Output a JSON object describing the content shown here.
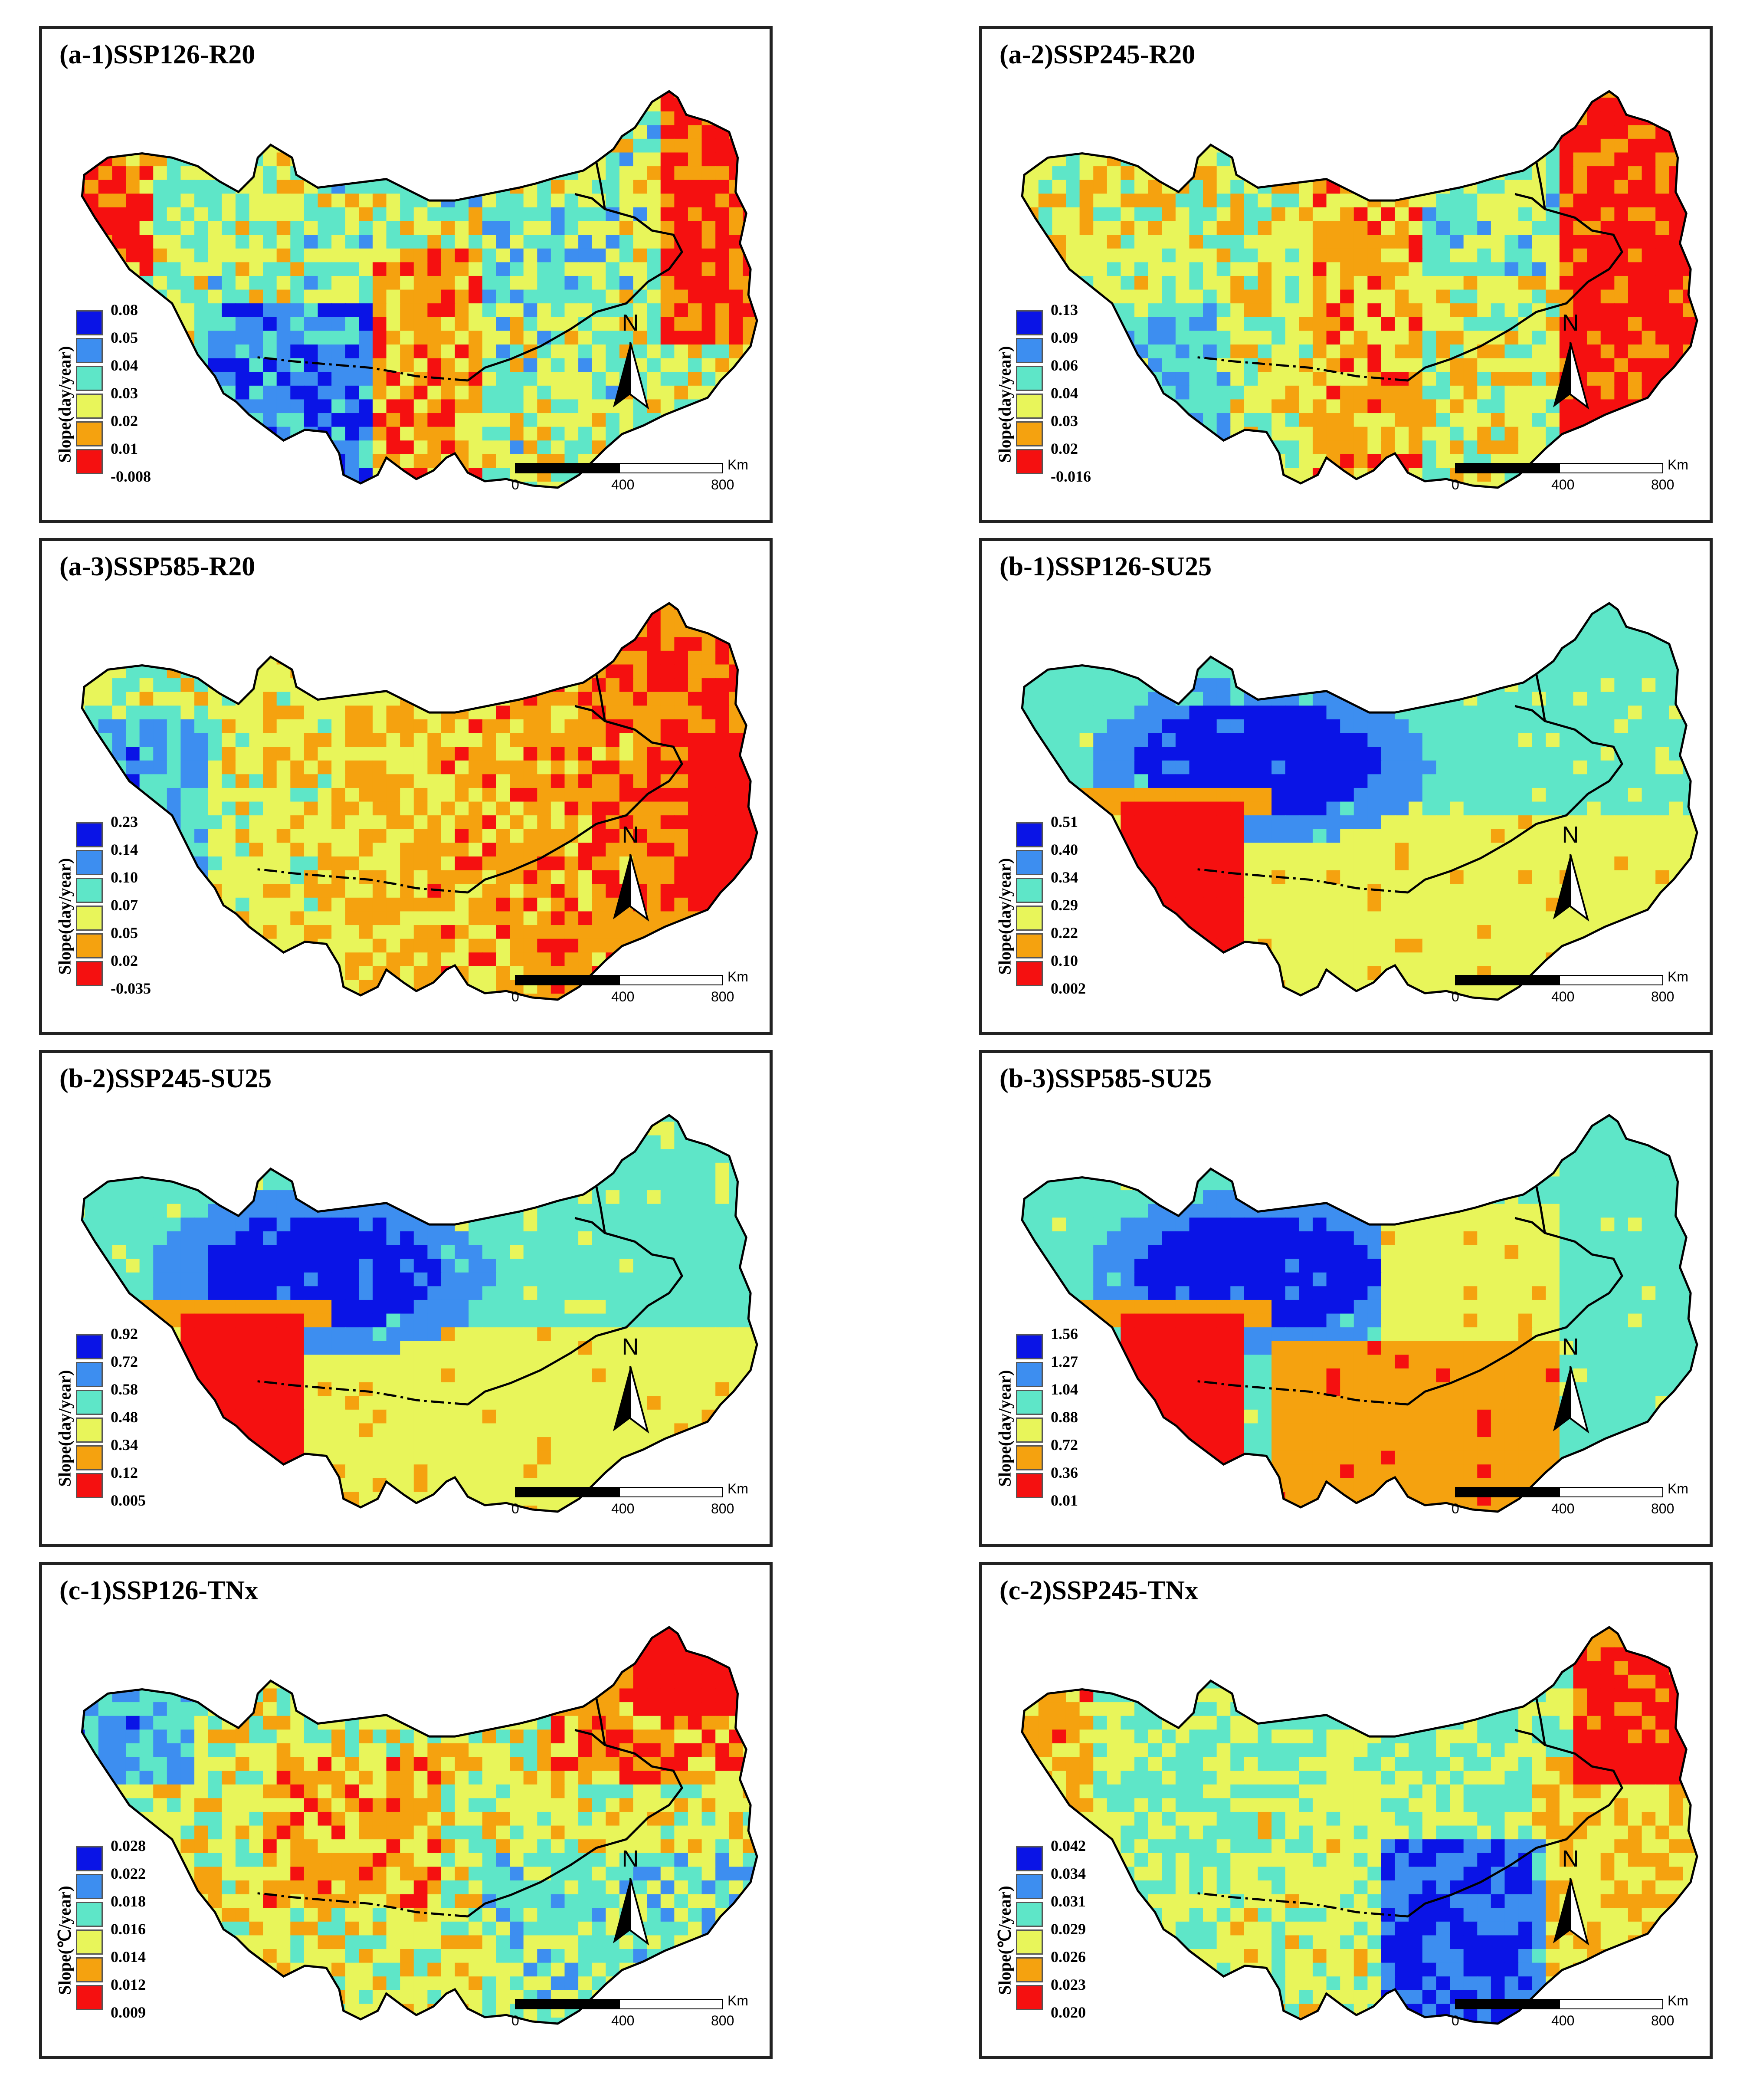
{
  "panels": [
    {
      "title": "(a-1)SSP126-R20",
      "unit": "Slope(day/year)",
      "legend": [
        "0.08",
        "0.05",
        "0.04",
        "0.03",
        "0.02",
        "0.01",
        "-0.008"
      ],
      "pattern": "mixed"
    },
    {
      "title": "(a-2)SSP245-R20",
      "unit": "Slope(day/year)",
      "legend": [
        "0.13",
        "0.09",
        "0.06",
        "0.04",
        "0.03",
        "0.02",
        "-0.016"
      ],
      "pattern": "east_red"
    },
    {
      "title": "(a-3)SSP585-R20",
      "unit": "Slope(day/year)",
      "legend": [
        "0.23",
        "0.14",
        "0.10",
        "0.07",
        "0.05",
        "0.02",
        "-0.035"
      ],
      "pattern": "west_blue_east_orange"
    },
    {
      "title": "(b-1)SSP126-SU25",
      "unit": "Slope(day/year)",
      "legend": [
        "0.51",
        "0.40",
        "0.34",
        "0.29",
        "0.22",
        "0.10",
        "0.002"
      ],
      "pattern": "su25"
    },
    {
      "title": "(b-2)SSP245-SU25",
      "unit": "Slope(day/year)",
      "legend": [
        "0.92",
        "0.72",
        "0.58",
        "0.48",
        "0.34",
        "0.12",
        "0.005"
      ],
      "pattern": "su25"
    },
    {
      "title": "(b-3)SSP585-SU25",
      "unit": "Slope(day/year)",
      "legend": [
        "1.56",
        "1.27",
        "1.04",
        "0.88",
        "0.72",
        "0.36",
        "0.01"
      ],
      "pattern": "su25_south_orange"
    },
    {
      "title": "(c-1)SSP126-TNx",
      "unit": "Slope(℃/year)",
      "legend": [
        "0.028",
        "0.022",
        "0.018",
        "0.016",
        "0.014",
        "0.012",
        "0.009"
      ],
      "pattern": "tnx1"
    },
    {
      "title": "(c-2)SSP245-TNx",
      "unit": "Slope(℃/year)",
      "legend": [
        "0.042",
        "0.034",
        "0.031",
        "0.029",
        "0.026",
        "0.023",
        "0.020"
      ],
      "pattern": "tnx2"
    }
  ],
  "legend_colors": [
    "#0a14e6",
    "#3d8ef0",
    "#5ee6c8",
    "#e8f55a",
    "#f5a20f",
    "#f51010"
  ],
  "north_label": "N",
  "scale": {
    "labels": [
      "0",
      "400",
      "800"
    ],
    "unit": "Km"
  }
}
